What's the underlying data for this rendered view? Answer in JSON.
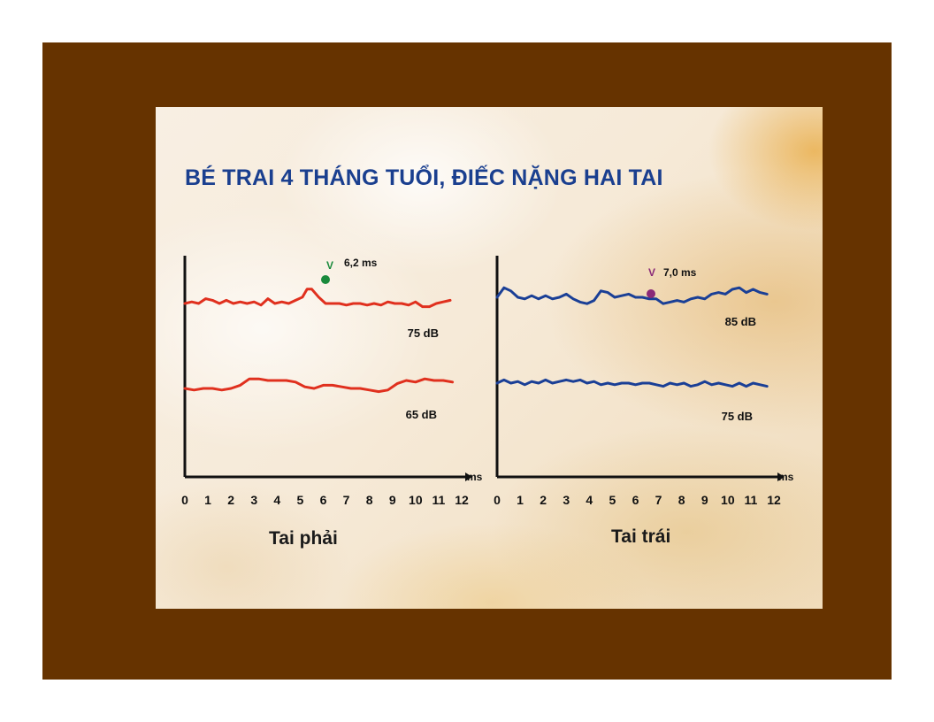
{
  "title": "BÉ TRAI 4 THÁNG TUỔI, ĐIẾC NẶNG HAI TAI",
  "chart_data": [
    {
      "type": "line",
      "label": "Tai phải",
      "xlabel": "ms",
      "xlim": [
        0,
        12
      ],
      "x_ticks": [
        "0",
        "1",
        "2",
        "3",
        "4",
        "5",
        "6",
        "7",
        "8",
        "9",
        "10",
        "11",
        "12"
      ],
      "line_color": "#e0301e",
      "marker": {
        "letter": "V",
        "latency": "6,2 ms",
        "x": 5.5,
        "color": "#1a8a3c"
      },
      "series": [
        {
          "name": "75 dB",
          "x": [
            0,
            0.3,
            0.6,
            0.9,
            1.2,
            1.5,
            1.8,
            2.1,
            2.4,
            2.7,
            3.0,
            3.3,
            3.6,
            3.9,
            4.2,
            4.5,
            4.8,
            5.1,
            5.3,
            5.5,
            5.8,
            6.1,
            6.4,
            6.7,
            7.0,
            7.3,
            7.6,
            7.9,
            8.2,
            8.5,
            8.8,
            9.1,
            9.4,
            9.7,
            10.0,
            10.3,
            10.6,
            10.9,
            11.2,
            11.5
          ],
          "y": [
            0,
            1,
            0,
            3,
            2,
            0,
            2,
            0,
            1,
            0,
            1,
            -1,
            3,
            0,
            1,
            0,
            2,
            4,
            9,
            9,
            4,
            0,
            0,
            0,
            -1,
            0,
            0,
            -1,
            0,
            -1,
            1,
            0,
            0,
            -1,
            1,
            -2,
            -2,
            0,
            1,
            2
          ]
        },
        {
          "name": "65 dB",
          "x": [
            0,
            0.4,
            0.8,
            1.2,
            1.6,
            2.0,
            2.4,
            2.8,
            3.2,
            3.6,
            4.0,
            4.4,
            4.8,
            5.2,
            5.6,
            6.0,
            6.4,
            6.8,
            7.2,
            7.6,
            8.0,
            8.4,
            8.8,
            9.2,
            9.6,
            10.0,
            10.4,
            10.8,
            11.2,
            11.6
          ],
          "y": [
            0,
            -1,
            0,
            0,
            -1,
            0,
            2,
            6,
            6,
            5,
            5,
            5,
            4,
            1,
            0,
            2,
            2,
            1,
            0,
            0,
            -1,
            -2,
            -1,
            3,
            5,
            4,
            6,
            5,
            5,
            4
          ]
        }
      ]
    },
    {
      "type": "line",
      "label": "Tai trái",
      "xlabel": "ms",
      "xlim": [
        0,
        12
      ],
      "x_ticks": [
        "0",
        "1",
        "2",
        "3",
        "4",
        "5",
        "6",
        "7",
        "8",
        "9",
        "10",
        "11",
        "12"
      ],
      "line_color": "#1a3f96",
      "marker": {
        "letter": "V",
        "latency": "7,0 ms",
        "x": 6.4,
        "color": "#8a2a78"
      },
      "series": [
        {
          "name": "85 dB",
          "x": [
            0,
            0.3,
            0.6,
            0.9,
            1.2,
            1.5,
            1.8,
            2.1,
            2.4,
            2.7,
            3.0,
            3.3,
            3.6,
            3.9,
            4.2,
            4.5,
            4.8,
            5.1,
            5.4,
            5.7,
            6.0,
            6.3,
            6.6,
            6.9,
            7.2,
            7.5,
            7.8,
            8.1,
            8.4,
            8.7,
            9.0,
            9.3,
            9.6,
            9.9,
            10.2,
            10.5,
            10.8,
            11.1,
            11.4,
            11.7
          ],
          "y": [
            0,
            6,
            4,
            0,
            -1,
            1,
            -1,
            1,
            -1,
            0,
            2,
            -1,
            -3,
            -4,
            -2,
            4,
            3,
            0,
            1,
            2,
            0,
            0,
            -1,
            -1,
            -4,
            -3,
            -2,
            -3,
            -1,
            0,
            -1,
            2,
            3,
            2,
            5,
            6,
            3,
            5,
            3,
            2
          ]
        },
        {
          "name": "75 dB",
          "x": [
            0,
            0.3,
            0.6,
            0.9,
            1.2,
            1.5,
            1.8,
            2.1,
            2.4,
            2.7,
            3.0,
            3.3,
            3.6,
            3.9,
            4.2,
            4.5,
            4.8,
            5.1,
            5.4,
            5.7,
            6.0,
            6.3,
            6.6,
            6.9,
            7.2,
            7.5,
            7.8,
            8.1,
            8.4,
            8.7,
            9.0,
            9.3,
            9.6,
            9.9,
            10.2,
            10.5,
            10.8,
            11.1,
            11.4,
            11.7
          ],
          "y": [
            0,
            2,
            0,
            1,
            -1,
            1,
            0,
            2,
            0,
            1,
            2,
            1,
            2,
            0,
            1,
            -1,
            0,
            -1,
            0,
            0,
            -1,
            0,
            0,
            -1,
            -2,
            0,
            -1,
            0,
            -2,
            -1,
            1,
            -1,
            0,
            -1,
            -2,
            0,
            -2,
            0,
            -1,
            -2
          ]
        }
      ]
    }
  ]
}
